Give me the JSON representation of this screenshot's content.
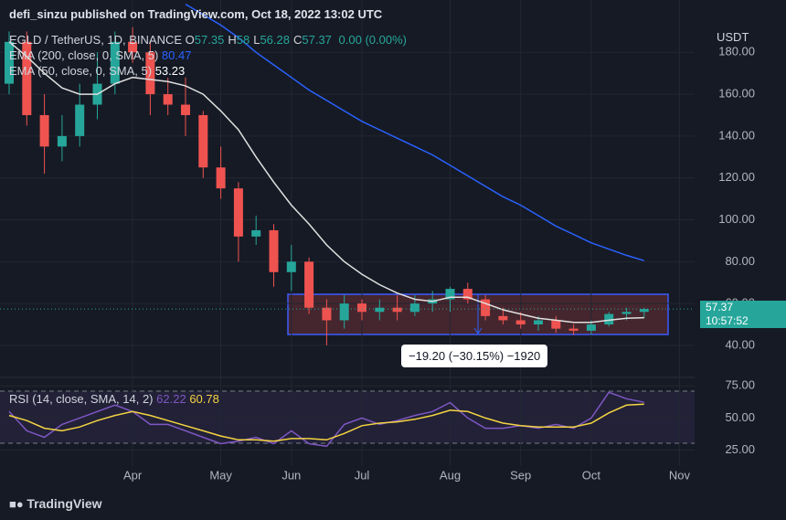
{
  "header": "defi_sinzu published on TradingView.com, Oct 18, 2022 13:02 UTC",
  "footer": "TradingView",
  "chart_data": [
    {
      "type": "candlestick",
      "symbol": "EGLD / TetherUS, 1D, BINANCE",
      "ohlc_legend": [
        {
          "label": "O",
          "value": 57.35
        },
        {
          "label": "H",
          "value": 58.0
        },
        {
          "label": "L",
          "value": 56.28
        },
        {
          "label": "C",
          "value": 57.37
        }
      ],
      "change": "0.00 (0.00%)",
      "currency": "USDT",
      "last_price": 57.37,
      "countdown": "10:57:52",
      "measure": "−19.20 (−30.15%) −1920",
      "categories": [
        null,
        null,
        null,
        null,
        null,
        null,
        null,
        "Apr",
        null,
        null,
        null,
        null,
        "May",
        null,
        null,
        null,
        "Jun",
        null,
        null,
        null,
        "Jul",
        null,
        null,
        null,
        null,
        "Aug",
        null,
        null,
        null,
        "Sep",
        null,
        null,
        null,
        "Oct",
        null,
        null,
        null,
        null,
        "Nov"
      ],
      "open": [
        165,
        185,
        150,
        135,
        140,
        155,
        165,
        185,
        180,
        160,
        155,
        150,
        125,
        115,
        92,
        95,
        75,
        80,
        58,
        52,
        60,
        56,
        58,
        56,
        60,
        62,
        67,
        62,
        54,
        52,
        50,
        52,
        48,
        47,
        50,
        55,
        56,
        null,
        null
      ],
      "high": [
        190,
        190,
        160,
        150,
        165,
        180,
        190,
        192,
        185,
        170,
        168,
        152,
        135,
        118,
        102,
        98,
        88,
        82,
        62,
        64,
        62,
        62,
        64,
        64,
        66,
        68,
        70,
        64,
        58,
        56,
        54,
        54,
        50,
        52,
        56,
        58,
        58,
        null,
        null
      ],
      "low": [
        160,
        145,
        122,
        128,
        135,
        148,
        160,
        175,
        150,
        150,
        140,
        120,
        110,
        80,
        88,
        68,
        66,
        55,
        40,
        48,
        52,
        52,
        52,
        54,
        56,
        56,
        60,
        52,
        50,
        48,
        47,
        46,
        45,
        45,
        49,
        52,
        53,
        null,
        null
      ],
      "close": [
        185,
        150,
        135,
        140,
        155,
        165,
        185,
        180,
        160,
        155,
        150,
        125,
        115,
        92,
        95,
        75,
        80,
        58,
        52,
        60,
        56,
        58,
        56,
        60,
        62,
        67,
        62,
        54,
        52,
        50,
        52,
        48,
        47,
        50,
        55,
        56,
        57.37,
        null,
        null
      ],
      "up_color": "#26a69a",
      "down_color": "#ef5350",
      "series": [
        {
          "name": "EMA (200, close, 0, SMA, 5)",
          "color": "#2962ff",
          "values": [
            null,
            null,
            null,
            null,
            null,
            null,
            null,
            null,
            null,
            null,
            203,
            198,
            193,
            187,
            180,
            174,
            168,
            162,
            157,
            152,
            147,
            143,
            139,
            135,
            131,
            126,
            121,
            116,
            111,
            107,
            102,
            97,
            93,
            89,
            86,
            83,
            80.47,
            null,
            null
          ]
        },
        {
          "name": "EMA (50, close, 0, SMA, 5)",
          "color": "#e0e0e0",
          "values": [
            185,
            178,
            170,
            163,
            160,
            160,
            165,
            168,
            167,
            166,
            164,
            160,
            152,
            143,
            130,
            118,
            107,
            98,
            88,
            80,
            74,
            69,
            65,
            62,
            61,
            63,
            63,
            60,
            57,
            55,
            53,
            52,
            51,
            51,
            52,
            53,
            53.23,
            null,
            null
          ]
        }
      ],
      "ylim": [
        26,
        205
      ],
      "yticks": [
        {
          "value": 40,
          "label": "40.00"
        },
        {
          "value": 60,
          "label": "60.00"
        },
        {
          "value": 80,
          "label": "80.00"
        },
        {
          "value": 100,
          "label": "100.00"
        },
        {
          "value": 120,
          "label": "120.00"
        },
        {
          "value": 140,
          "label": "140.00"
        },
        {
          "value": 160,
          "label": "160.00"
        },
        {
          "value": 180,
          "label": "180.00"
        }
      ],
      "grid": true
    },
    {
      "type": "line",
      "series": [
        {
          "name": "RSI (14, close, SMA, 14, 2)",
          "color": "#7e57c2",
          "values": [
            55,
            40,
            35,
            45,
            50,
            55,
            60,
            55,
            45,
            45,
            40,
            35,
            30,
            32,
            35,
            30,
            40,
            30,
            28,
            45,
            50,
            45,
            48,
            52,
            55,
            62,
            50,
            42,
            42,
            44,
            42,
            45,
            42,
            50,
            70,
            65,
            62.22,
            null,
            null
          ]
        },
        {
          "color": "#f5d442",
          "values": [
            52,
            48,
            42,
            40,
            43,
            48,
            52,
            55,
            52,
            48,
            44,
            40,
            36,
            33,
            33,
            32,
            34,
            34,
            33,
            38,
            44,
            46,
            47,
            49,
            52,
            56,
            55,
            50,
            46,
            44,
            43,
            43,
            43,
            46,
            54,
            60,
            60.78,
            null,
            null
          ]
        }
      ],
      "ylim": [
        14,
        78
      ],
      "yticks": [
        {
          "value": 25,
          "label": "25.00"
        },
        {
          "value": 50,
          "label": "50.00"
        },
        {
          "value": 75,
          "label": "75.00"
        }
      ],
      "grid": true
    }
  ]
}
